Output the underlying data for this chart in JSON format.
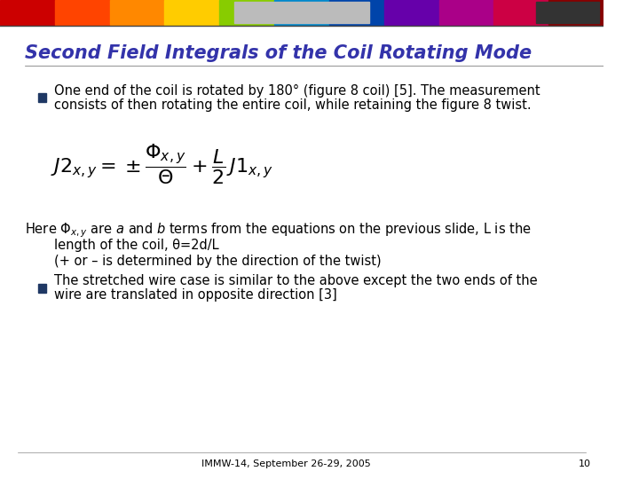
{
  "title": "Second Field Integrals of the Coil Rotating Mode",
  "title_color": "#3333AA",
  "title_italic": true,
  "title_bold": true,
  "bg_color": "#FFFFFF",
  "header_bar_color": "#CCCCCC",
  "bullet_color": "#1F3864",
  "text_color": "#000000",
  "bullet1": "One end of the coil is rotated by 180° (figure 8 coil) [5]. The measurement\nconsists of then rotating the entire coil, while retaining the figure 8 twist.",
  "formula": "J2_{x,y} = \\pm \\frac{\\Phi_{x,y}}{\\Theta} + \\frac{L}{2} J1_{x,y}",
  "para1_line1": "Here $\\Phi_{x,y}$ are $a$ and $b$ terms from the equations on the previous slide, L is the",
  "para1_line2": "length of the coil, θ=2d/L",
  "para1_line3": "(+ or – is determined by the direction of the twist)",
  "bullet2_line1": "The stretched wire case is similar to the above except the two ends of the",
  "bullet2_line2": "wire are translated in opposite direction [3]",
  "footer": "IMMW-14, September 26-29, 2005",
  "page_num": "10",
  "footer_color": "#000000"
}
